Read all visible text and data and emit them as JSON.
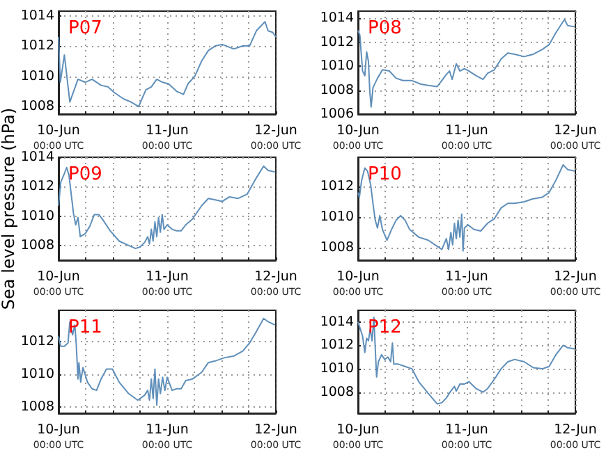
{
  "chart_data": [
    {
      "type": "line",
      "title": "P07",
      "color": "#5f8fba",
      "grid": true,
      "xlim": [
        "--06-10T00:00",
        "--06-12T00:00"
      ],
      "xticks": [
        {
          "value": "--06-10T00:00",
          "label": "10-Jun\n00:00 UTC"
        },
        {
          "value": "--06-10T06:00",
          "label": null
        },
        {
          "value": "--06-10T12:00",
          "label": null
        },
        {
          "value": "--06-10T18:00",
          "label": null
        },
        {
          "value": "--06-11T00:00",
          "label": "11-Jun\n00:00 UTC"
        },
        {
          "value": "--06-11T06:00",
          "label": null
        },
        {
          "value": "--06-11T12:00",
          "label": null
        },
        {
          "value": "--06-11T18:00",
          "label": null
        },
        {
          "value": "--06-12T00:00",
          "label": "12-Jun\n00:00 UTC"
        }
      ],
      "ylim": [
        1007.5,
        1014.3
      ],
      "yticks": [
        1008,
        1010,
        1012,
        1014
      ],
      "x": [
        "--06-10T00:00",
        "--06-10T00:24",
        "--06-10T01:18",
        "--06-10T02:30",
        "--06-10T04:18",
        "--06-10T05:54",
        "--06-10T07:24",
        "--06-10T09:24",
        "--06-10T10:54",
        "--06-10T12:24",
        "--06-10T14:24",
        "--06-10T16:00",
        "--06-10T17:42",
        "--06-10T19:18",
        "--06-10T20:30",
        "--06-10T21:42",
        "--06-10T23:00",
        "--06-11T00:18",
        "--06-11T02:06",
        "--06-11T03:36",
        "--06-11T04:36",
        "--06-11T06:06",
        "--06-11T07:36",
        "--06-11T09:06",
        "--06-11T10:36",
        "--06-11T12:12",
        "--06-11T14:42",
        "--06-11T16:42",
        "--06-11T18:12",
        "--06-11T19:42",
        "--06-11T21:36",
        "--06-11T22:18",
        "--06-11T23:18",
        "--06-12T00:00"
      ],
      "values": [
        1012.6,
        1009.6,
        1011.4,
        1008.3,
        1009.8,
        1009.6,
        1009.8,
        1009.4,
        1009.3,
        1008.9,
        1008.5,
        1008.3,
        1008.0,
        1009.1,
        1009.3,
        1009.8,
        1009.6,
        1009.5,
        1009.0,
        1008.8,
        1009.5,
        1010.0,
        1011.0,
        1011.7,
        1012.0,
        1012.1,
        1011.8,
        1012.0,
        1012.0,
        1013.0,
        1013.6,
        1013.0,
        1012.9,
        1012.6
      ]
    },
    {
      "type": "line",
      "title": "P08",
      "color": "#5f8fba",
      "grid": true,
      "xlim": [
        "--06-10T00:00",
        "--06-12T00:00"
      ],
      "xticks": [
        {
          "value": "--06-10T00:00",
          "label": "10-Jun\n00:00 UTC"
        },
        {
          "value": "--06-10T06:00",
          "label": null
        },
        {
          "value": "--06-10T12:00",
          "label": null
        },
        {
          "value": "--06-10T18:00",
          "label": null
        },
        {
          "value": "--06-11T00:00",
          "label": "11-Jun\n00:00 UTC"
        },
        {
          "value": "--06-11T06:00",
          "label": null
        },
        {
          "value": "--06-11T12:00",
          "label": null
        },
        {
          "value": "--06-11T18:00",
          "label": null
        },
        {
          "value": "--06-12T00:00",
          "label": "12-Jun\n00:00 UTC"
        }
      ],
      "ylim": [
        1006,
        1014.6
      ],
      "yticks": [
        1006,
        1008,
        1010,
        1012,
        1014
      ],
      "x": [
        "--06-10T00:00",
        "--06-10T00:24",
        "--06-10T01:00",
        "--06-10T01:30",
        "--06-10T01:54",
        "--06-10T02:18",
        "--06-10T02:36",
        "--06-10T02:54",
        "--06-10T03:18",
        "--06-10T04:18",
        "--06-10T05:24",
        "--06-10T06:54",
        "--06-10T08:24",
        "--06-10T09:54",
        "--06-10T11:54",
        "--06-10T13:54",
        "--06-10T15:30",
        "--06-10T17:30",
        "--06-10T18:30",
        "--06-10T19:30",
        "--06-10T20:12",
        "--06-10T20:48",
        "--06-10T21:42",
        "--06-10T22:30",
        "--06-10T23:30",
        "--06-11T00:30",
        "--06-11T02:06",
        "--06-11T03:36",
        "--06-11T04:36",
        "--06-11T06:06",
        "--06-11T07:36",
        "--06-11T09:06",
        "--06-11T10:36",
        "--06-11T12:42",
        "--06-11T14:42",
        "--06-11T16:42",
        "--06-11T18:12",
        "--06-11T19:42",
        "--06-11T21:36",
        "--06-11T22:18",
        "--06-11T23:48"
      ],
      "values": [
        1013.0,
        1012.6,
        1009.6,
        1009.2,
        1011.2,
        1010.4,
        1007.9,
        1006.6,
        1008.2,
        1009.0,
        1009.7,
        1009.6,
        1009.0,
        1008.8,
        1008.8,
        1008.5,
        1008.4,
        1008.3,
        1008.8,
        1009.3,
        1009.6,
        1008.9,
        1010.2,
        1009.6,
        1009.8,
        1009.6,
        1009.2,
        1008.9,
        1009.4,
        1009.7,
        1010.6,
        1011.1,
        1011.0,
        1010.8,
        1011.0,
        1011.4,
        1011.8,
        1012.8,
        1013.9,
        1013.4,
        1013.3
      ]
    },
    {
      "type": "line",
      "title": "P09",
      "ylabel": "Sea level pressure (hPa)",
      "color": "#5f8fba",
      "grid": true,
      "xlim": [
        "--06-10T00:00",
        "--06-12T00:00"
      ],
      "xticks": [
        {
          "value": "--06-10T00:00",
          "label": "10-Jun\n00:00 UTC"
        },
        {
          "value": "--06-10T06:00",
          "label": null
        },
        {
          "value": "--06-10T12:00",
          "label": null
        },
        {
          "value": "--06-10T18:00",
          "label": null
        },
        {
          "value": "--06-11T00:00",
          "label": "11-Jun\n00:00 UTC"
        },
        {
          "value": "--06-11T06:00",
          "label": null
        },
        {
          "value": "--06-11T12:00",
          "label": null
        },
        {
          "value": "--06-11T18:00",
          "label": null
        },
        {
          "value": "--06-12T00:00",
          "label": "12-Jun\n00:00 UTC"
        }
      ],
      "ylim": [
        1007,
        1014
      ],
      "yticks": [
        1008,
        1010,
        1012,
        1014
      ],
      "x": [
        "--06-10T00:00",
        "--06-10T00:30",
        "--06-10T01:18",
        "--06-10T01:48",
        "--06-10T02:18",
        "--06-10T02:48",
        "--06-10T03:18",
        "--06-10T03:48",
        "--06-10T04:18",
        "--06-10T04:48",
        "--06-10T05:54",
        "--06-10T06:54",
        "--06-10T07:54",
        "--06-10T08:54",
        "--06-10T09:54",
        "--06-10T11:24",
        "--06-10T13:24",
        "--06-10T15:30",
        "--06-10T17:00",
        "--06-10T18:00",
        "--06-10T19:00",
        "--06-10T19:42",
        "--06-10T20:06",
        "--06-10T20:30",
        "--06-10T20:54",
        "--06-10T21:18",
        "--06-10T21:42",
        "--06-10T22:06",
        "--06-10T22:30",
        "--06-10T22:54",
        "--06-10T23:18",
        "--06-11T00:00",
        "--06-11T01:06",
        "--06-11T02:06",
        "--06-11T03:06",
        "--06-11T04:06",
        "--06-11T05:36",
        "--06-11T07:36",
        "--06-11T09:06",
        "--06-11T10:36",
        "--06-11T12:12",
        "--06-11T13:42",
        "--06-11T15:42",
        "--06-11T17:42",
        "--06-11T19:42",
        "--06-11T21:18",
        "--06-11T22:18",
        "--06-11T23:48"
      ],
      "values": [
        1010.7,
        1012.3,
        1012.9,
        1013.3,
        1012.8,
        1011.5,
        1010.2,
        1009.4,
        1009.9,
        1008.6,
        1008.8,
        1009.3,
        1010.1,
        1010.1,
        1009.7,
        1009.0,
        1008.3,
        1008.0,
        1007.8,
        1007.9,
        1008.2,
        1008.6,
        1008.1,
        1009.1,
        1008.3,
        1009.6,
        1008.6,
        1009.9,
        1008.9,
        1010.1,
        1009.1,
        1009.4,
        1009.1,
        1009.0,
        1009.0,
        1009.4,
        1009.8,
        1010.7,
        1011.2,
        1011.1,
        1011.0,
        1011.3,
        1011.2,
        1011.5,
        1012.6,
        1013.4,
        1013.1,
        1013.0
      ]
    },
    {
      "type": "line",
      "title": "P10",
      "color": "#5f8fba",
      "grid": true,
      "xlim": [
        "--06-10T00:00",
        "--06-12T00:00"
      ],
      "xticks": [
        {
          "value": "--06-10T00:00",
          "label": "10-Jun\n00:00 UTC"
        },
        {
          "value": "--06-10T06:00",
          "label": null
        },
        {
          "value": "--06-10T12:00",
          "label": null
        },
        {
          "value": "--06-10T18:00",
          "label": null
        },
        {
          "value": "--06-11T00:00",
          "label": "11-Jun\n00:00 UTC"
        },
        {
          "value": "--06-11T06:00",
          "label": null
        },
        {
          "value": "--06-11T12:00",
          "label": null
        },
        {
          "value": "--06-11T18:00",
          "label": null
        },
        {
          "value": "--06-12T00:00",
          "label": "12-Jun\n00:00 UTC"
        }
      ],
      "ylim": [
        1007.2,
        1013.9
      ],
      "yticks": [
        1008,
        1010,
        1012
      ],
      "x": [
        "--06-10T00:00",
        "--06-10T00:18",
        "--06-10T00:48",
        "--06-10T01:30",
        "--06-10T02:06",
        "--06-10T02:48",
        "--06-10T03:18",
        "--06-10T03:48",
        "--06-10T04:18",
        "--06-10T04:48",
        "--06-10T05:24",
        "--06-10T06:24",
        "--06-10T07:24",
        "--06-10T08:24",
        "--06-10T09:24",
        "--06-10T10:24",
        "--06-10T11:24",
        "--06-10T13:24",
        "--06-10T15:30",
        "--06-10T17:30",
        "--06-10T18:30",
        "--06-10T19:30",
        "--06-10T20:00",
        "--06-10T20:30",
        "--06-10T20:54",
        "--06-10T21:18",
        "--06-10T21:42",
        "--06-10T22:06",
        "--06-10T22:30",
        "--06-10T22:54",
        "--06-10T23:12",
        "--06-10T23:30",
        "--06-11T00:18",
        "--06-11T01:36",
        "--06-11T03:06",
        "--06-11T04:36",
        "--06-11T06:06",
        "--06-11T07:36",
        "--06-11T09:06",
        "--06-11T10:36",
        "--06-11T12:42",
        "--06-11T14:42",
        "--06-11T16:42",
        "--06-11T18:12",
        "--06-11T19:42",
        "--06-11T21:18",
        "--06-11T22:18",
        "--06-11T23:48"
      ],
      "values": [
        1011.6,
        1011.3,
        1012.4,
        1013.2,
        1013.0,
        1012.1,
        1010.9,
        1009.8,
        1009.3,
        1010.1,
        1009.2,
        1008.5,
        1009.2,
        1009.8,
        1010.1,
        1009.8,
        1009.2,
        1008.7,
        1008.5,
        1008.1,
        1007.9,
        1008.6,
        1007.9,
        1009.0,
        1008.2,
        1009.6,
        1008.6,
        1009.8,
        1008.7,
        1010.2,
        1007.8,
        1009.3,
        1009.5,
        1009.2,
        1009.1,
        1009.6,
        1009.9,
        1010.6,
        1010.9,
        1010.9,
        1011.0,
        1011.2,
        1011.3,
        1011.6,
        1012.4,
        1013.4,
        1013.1,
        1013.0
      ]
    },
    {
      "type": "line",
      "title": "P11",
      "color": "#5f8fba",
      "grid": true,
      "xlim": [
        "--06-10T00:00",
        "--06-12T00:00"
      ],
      "xticks": [
        {
          "value": "--06-10T00:00",
          "label": "10-Jun\n00:00 UTC"
        },
        {
          "value": "--06-10T06:00",
          "label": null
        },
        {
          "value": "--06-10T12:00",
          "label": null
        },
        {
          "value": "--06-10T18:00",
          "label": null
        },
        {
          "value": "--06-11T00:00",
          "label": "11-Jun\n00:00 UTC"
        },
        {
          "value": "--06-11T06:00",
          "label": null
        },
        {
          "value": "--06-11T12:00",
          "label": null
        },
        {
          "value": "--06-11T18:00",
          "label": null
        },
        {
          "value": "--06-12T00:00",
          "label": "12-Jun\n00:00 UTC"
        }
      ],
      "ylim": [
        1007.6,
        1013.9
      ],
      "yticks": [
        1008,
        1010,
        1012
      ],
      "x": [
        "--06-10T00:00",
        "--06-10T00:30",
        "--06-10T01:18",
        "--06-10T02:06",
        "--06-10T02:30",
        "--06-10T03:06",
        "--06-10T03:36",
        "--06-10T03:54",
        "--06-10T04:18",
        "--06-10T04:30",
        "--06-10T04:54",
        "--06-10T05:24",
        "--06-10T06:24",
        "--06-10T07:24",
        "--06-10T08:24",
        "--06-10T09:24",
        "--06-10T10:36",
        "--06-10T11:54",
        "--06-10T13:24",
        "--06-10T15:30",
        "--06-10T17:30",
        "--06-10T19:00",
        "--06-10T19:42",
        "--06-10T20:06",
        "--06-10T20:30",
        "--06-10T20:54",
        "--06-10T21:18",
        "--06-10T21:42",
        "--06-10T22:06",
        "--06-10T22:30",
        "--06-10T23:00",
        "--06-10T23:30",
        "--06-11T00:00",
        "--06-11T01:06",
        "--06-11T02:06",
        "--06-11T03:06",
        "--06-11T04:06",
        "--06-11T05:36",
        "--06-11T07:36",
        "--06-11T09:06",
        "--06-11T10:36",
        "--06-11T12:42",
        "--06-11T14:42",
        "--06-11T16:42",
        "--06-11T18:12",
        "--06-11T19:42",
        "--06-11T21:18",
        "--06-11T22:18",
        "--06-11T23:48"
      ],
      "values": [
        1012.3,
        1011.7,
        1011.7,
        1011.9,
        1013.2,
        1012.4,
        1013.0,
        1011.9,
        1009.7,
        1010.7,
        1009.5,
        1010.4,
        1009.5,
        1009.1,
        1009.0,
        1009.7,
        1010.3,
        1010.3,
        1009.5,
        1008.8,
        1008.4,
        1008.7,
        1009.0,
        1008.4,
        1009.7,
        1008.5,
        1010.3,
        1008.1,
        1009.7,
        1008.8,
        1009.8,
        1009.0,
        1009.8,
        1009.0,
        1009.1,
        1009.1,
        1009.6,
        1009.7,
        1010.1,
        1010.7,
        1010.8,
        1011.0,
        1011.1,
        1011.4,
        1011.9,
        1012.6,
        1013.4,
        1013.2,
        1013.0
      ]
    },
    {
      "type": "line",
      "title": "P12",
      "color": "#5f8fba",
      "grid": true,
      "xlim": [
        "--06-10T00:00",
        "--06-12T00:00"
      ],
      "xticks": [
        {
          "value": "--06-10T00:00",
          "label": "10-Jun\n00:00 UTC"
        },
        {
          "value": "--06-10T06:00",
          "label": null
        },
        {
          "value": "--06-10T12:00",
          "label": null
        },
        {
          "value": "--06-10T18:00",
          "label": null
        },
        {
          "value": "--06-11T00:00",
          "label": "11-Jun\n00:00 UTC"
        },
        {
          "value": "--06-11T06:00",
          "label": null
        },
        {
          "value": "--06-11T12:00",
          "label": null
        },
        {
          "value": "--06-11T18:00",
          "label": null
        },
        {
          "value": "--06-12T00:00",
          "label": "12-Jun\n00:00 UTC"
        }
      ],
      "ylim": [
        1006.2,
        1015
      ],
      "yticks": [
        1008,
        1010,
        1012,
        1014
      ],
      "x": [
        "--06-10T00:00",
        "--06-10T00:30",
        "--06-10T01:00",
        "--06-10T01:30",
        "--06-10T01:54",
        "--06-10T02:18",
        "--06-10T02:42",
        "--06-10T03:06",
        "--06-10T03:30",
        "--06-10T03:48",
        "--06-10T04:06",
        "--06-10T04:30",
        "--06-10T05:12",
        "--06-10T05:54",
        "--06-10T06:36",
        "--06-10T07:12",
        "--06-10T07:36",
        "--06-10T07:54",
        "--06-10T08:54",
        "--06-10T10:24",
        "--06-10T11:54",
        "--06-10T13:24",
        "--06-10T15:30",
        "--06-10T17:30",
        "--06-10T18:30",
        "--06-10T19:30",
        "--06-10T20:30",
        "--06-10T21:18",
        "--06-10T21:42",
        "--06-10T22:30",
        "--06-10T23:30",
        "--06-11T00:30",
        "--06-11T02:06",
        "--06-11T03:36",
        "--06-11T04:36",
        "--06-11T06:06",
        "--06-11T07:36",
        "--06-11T09:06",
        "--06-11T10:36",
        "--06-11T12:42",
        "--06-11T14:42",
        "--06-11T16:42",
        "--06-11T18:12",
        "--06-11T19:42",
        "--06-11T21:18",
        "--06-11T22:18",
        "--06-11T23:48"
      ],
      "values": [
        1014.0,
        1013.4,
        1012.8,
        1011.4,
        1012.6,
        1012.4,
        1013.4,
        1012.4,
        1014.4,
        1011.8,
        1009.3,
        1010.6,
        1011.2,
        1010.8,
        1011.0,
        1010.6,
        1012.2,
        1010.4,
        1010.4,
        1010.2,
        1010.0,
        1008.9,
        1007.9,
        1007.0,
        1007.1,
        1007.5,
        1008.1,
        1008.5,
        1008.1,
        1008.7,
        1008.7,
        1008.9,
        1008.3,
        1008.0,
        1008.3,
        1009.1,
        1010.0,
        1010.6,
        1010.8,
        1010.6,
        1010.1,
        1010.0,
        1010.2,
        1011.2,
        1012.0,
        1011.8,
        1011.7
      ]
    }
  ]
}
